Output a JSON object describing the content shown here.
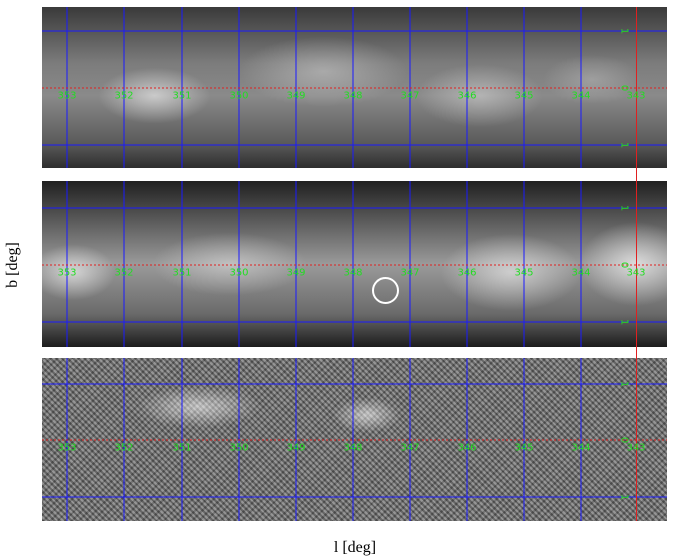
{
  "figure": {
    "xlabel": "l [deg]",
    "ylabel": "b [deg]"
  },
  "longitude_labels": [
    "353",
    "352",
    "351",
    "350",
    "349",
    "348",
    "347",
    "346",
    "345",
    "344",
    "343"
  ],
  "latitude_labels": [
    "1",
    "0",
    "1"
  ],
  "panels": [
    {
      "id": "panel-1",
      "style": "smooth-grayscale"
    },
    {
      "id": "panel-2",
      "style": "smooth-grayscale-bright"
    },
    {
      "id": "panel-3",
      "style": "noisy-grayscale"
    }
  ],
  "colors": {
    "grid": "#1a1aff",
    "zero_line": "#e02020",
    "labels": "#22dd22",
    "marker": "#ffffff"
  },
  "marker": {
    "shape": "circle",
    "color": "white"
  }
}
